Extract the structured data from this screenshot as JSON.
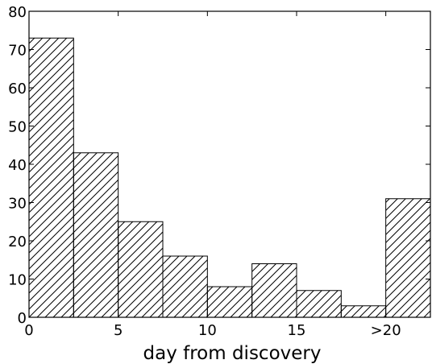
{
  "chart_data": {
    "type": "bar",
    "title": "",
    "xlabel": "day from discovery",
    "ylabel": "",
    "xlim": [
      0,
      22.5
    ],
    "ylim": [
      0,
      80
    ],
    "bar_fill": "hatched",
    "bars": [
      {
        "x0": 0,
        "x1": 2.5,
        "value": 73
      },
      {
        "x0": 2.5,
        "x1": 5,
        "value": 43
      },
      {
        "x0": 5,
        "x1": 7.5,
        "value": 25
      },
      {
        "x0": 7.5,
        "x1": 10,
        "value": 16
      },
      {
        "x0": 10,
        "x1": 12.5,
        "value": 8
      },
      {
        "x0": 12.5,
        "x1": 15,
        "value": 14
      },
      {
        "x0": 15,
        "x1": 17.5,
        "value": 7
      },
      {
        "x0": 17.5,
        "x1": 20,
        "value": 3
      },
      {
        "x0": 20,
        "x1": 22.5,
        "value": 31
      }
    ],
    "x_ticks": [
      {
        "value": 0,
        "label": "0"
      },
      {
        "value": 5,
        "label": "5"
      },
      {
        "value": 10,
        "label": "10"
      },
      {
        "value": 15,
        "label": "15"
      },
      {
        "value": 20,
        "label": ">20"
      }
    ],
    "y_ticks": [
      {
        "value": 0,
        "label": "0"
      },
      {
        "value": 10,
        "label": "10"
      },
      {
        "value": 20,
        "label": "20"
      },
      {
        "value": 30,
        "label": "30"
      },
      {
        "value": 40,
        "label": "40"
      },
      {
        "value": 50,
        "label": "50"
      },
      {
        "value": 60,
        "label": "60"
      },
      {
        "value": 70,
        "label": "70"
      },
      {
        "value": 80,
        "label": "80"
      }
    ],
    "grid": false,
    "colors": {
      "bar_stroke": "#000000",
      "hatch": "#000000",
      "background": "#ffffff"
    }
  }
}
